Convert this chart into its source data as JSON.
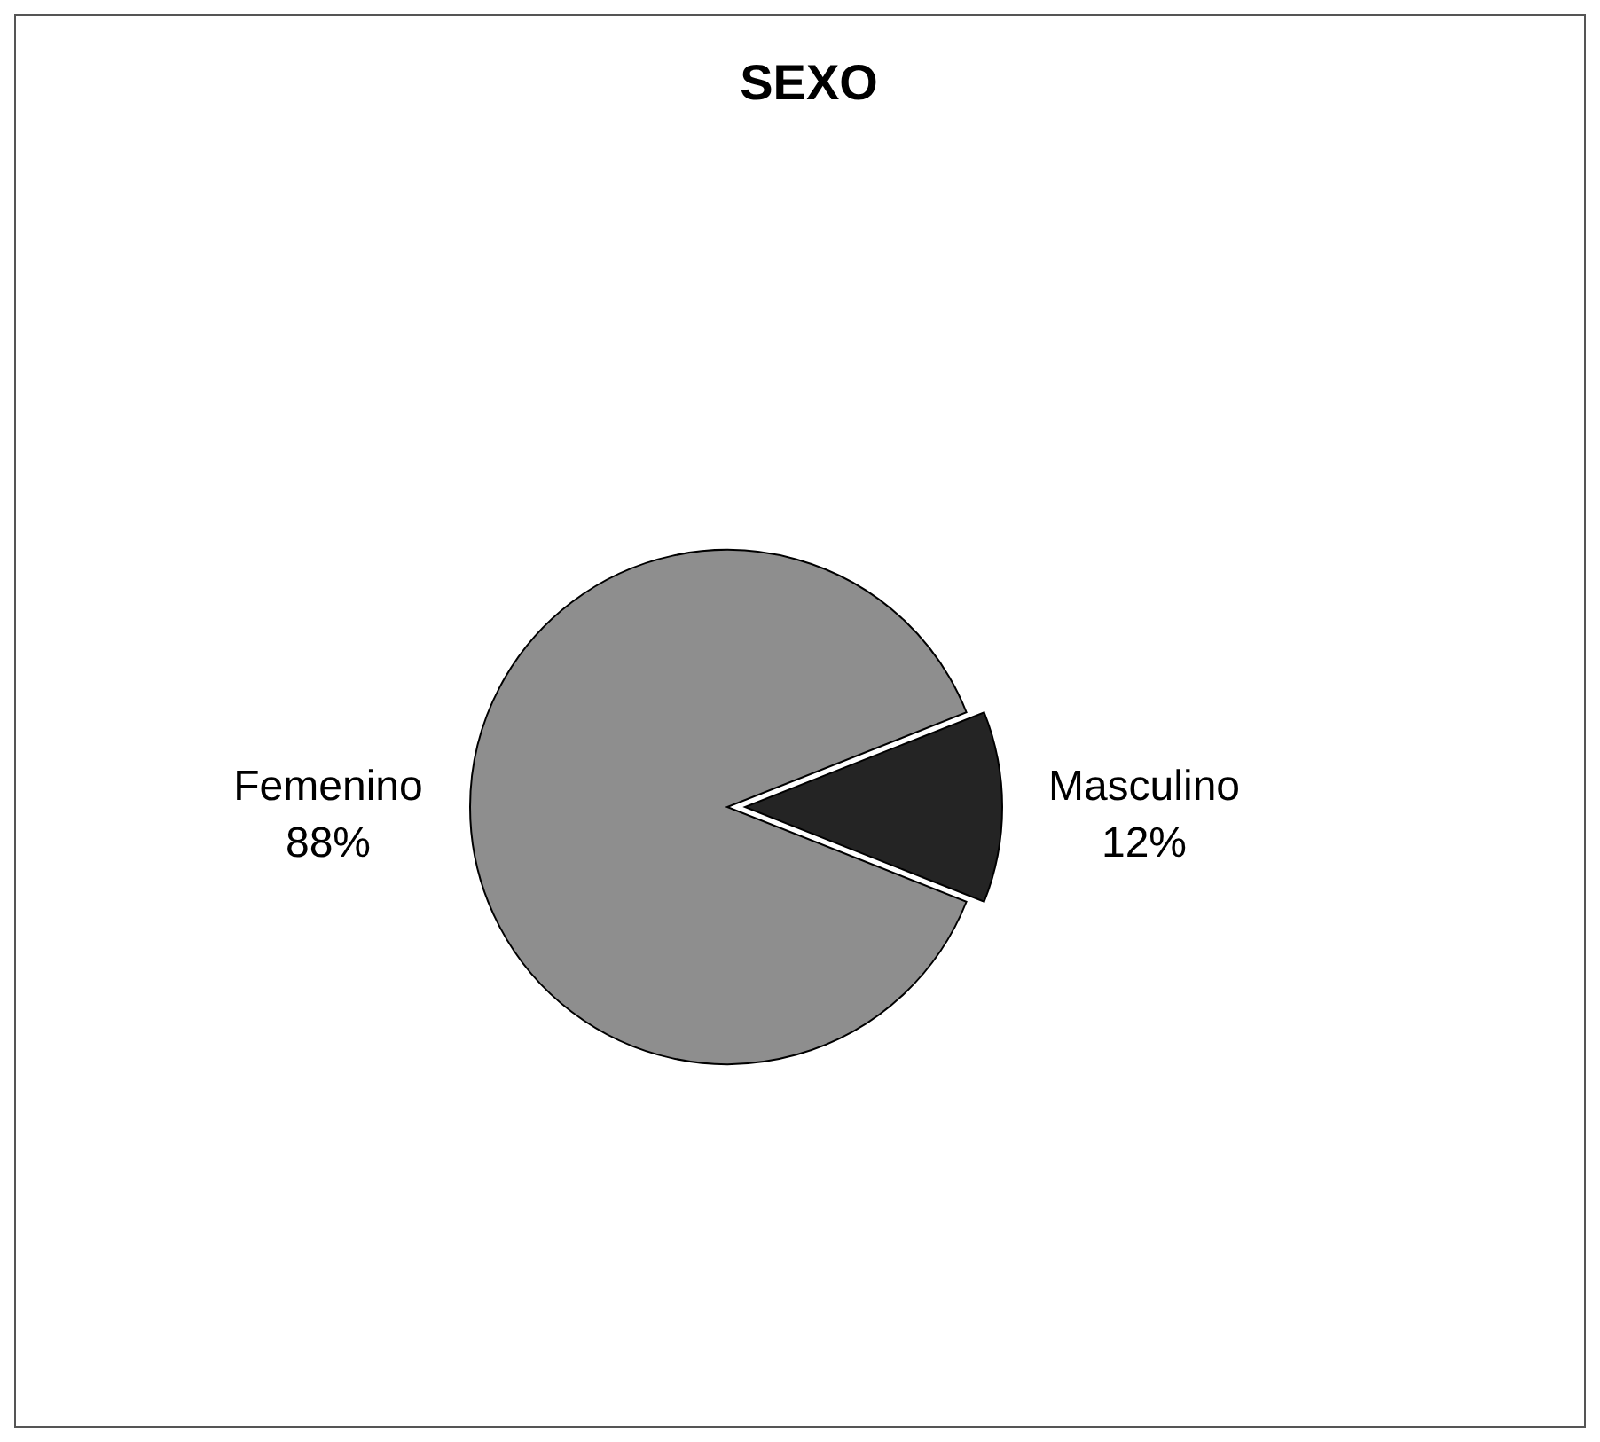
{
  "chart_data": {
    "type": "pie",
    "title": "SEXO",
    "categories": [
      "Femenino",
      "Masculino"
    ],
    "values": [
      88,
      12
    ],
    "colors": [
      "#8e8e8e",
      "#242424"
    ],
    "value_labels": [
      "88%",
      "12%"
    ],
    "legend": false
  }
}
